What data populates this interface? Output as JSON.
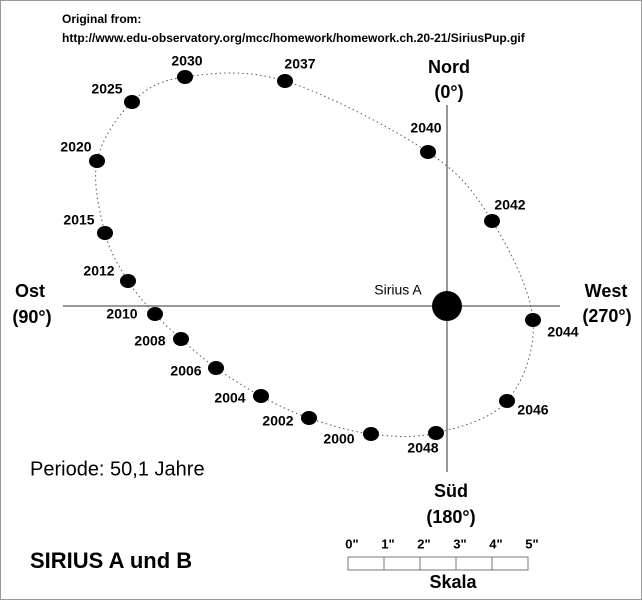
{
  "header": {
    "title": "Original from:",
    "source": "http://www.edu-observatory.org/mcc/homework/homework.ch.20-21/SiriusPup.gif"
  },
  "directions": {
    "north": {
      "name": "Nord",
      "angle": "(0°)"
    },
    "east": {
      "name": "Ost",
      "angle": "(90°)"
    },
    "west": {
      "name": "West",
      "angle": "(270°)"
    },
    "south": {
      "name": "Süd",
      "angle": "(180°)"
    }
  },
  "star": {
    "label": "Sirius A"
  },
  "points": [
    {
      "label": "2000"
    },
    {
      "label": "2002"
    },
    {
      "label": "2004"
    },
    {
      "label": "2006"
    },
    {
      "label": "2008"
    },
    {
      "label": "2010"
    },
    {
      "label": "2012"
    },
    {
      "label": "2015"
    },
    {
      "label": "2020"
    },
    {
      "label": "2025"
    },
    {
      "label": "2030"
    },
    {
      "label": "2037"
    },
    {
      "label": "2040"
    },
    {
      "label": "2042"
    },
    {
      "label": "2044"
    },
    {
      "label": "2046"
    },
    {
      "label": "2048"
    }
  ],
  "period": "Periode: 50,1 Jahre",
  "title": "SIRIUS A und B",
  "scale": {
    "ticks": [
      "0\"",
      "1\"",
      "2\"",
      "3\"",
      "4\"",
      "5\""
    ],
    "label": "Skala"
  }
}
